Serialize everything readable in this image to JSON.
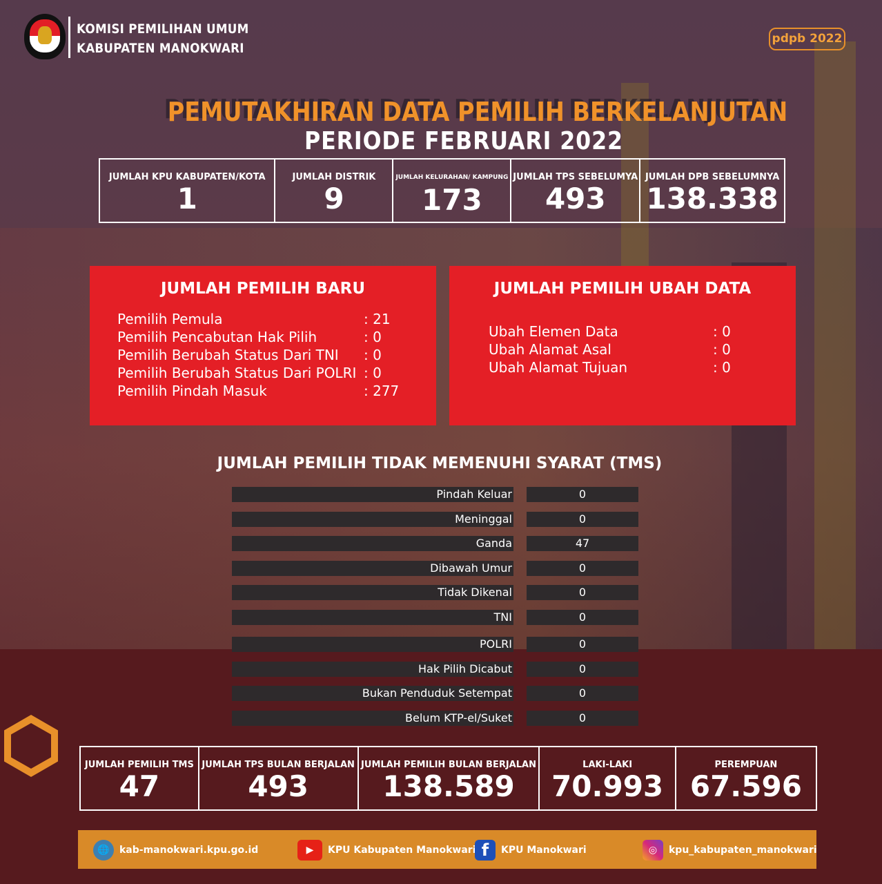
{
  "header": {
    "org_line1": "KOMISI PEMILIHAN UMUM",
    "org_line2": "KABUPATEN  MANOKWARI",
    "logo_text": "KOMISI PEMILIHAN UMUM",
    "badge": "pdpb 2022"
  },
  "title": {
    "line1": "PEMUTAKHIRAN DATA PEMILIH BERKELANJUTAN",
    "line2": "PERIODE FEBRUARI 2022"
  },
  "top_stats": [
    {
      "label": "JUMLAH KPU KABUPATEN/KOTA",
      "value": "1"
    },
    {
      "label": "JUMLAH DISTRIK",
      "value": "9"
    },
    {
      "label": "JUMLAH KELURAHAN/ KAMPUNG",
      "value": "173"
    },
    {
      "label": "JUMLAH TPS SEBELUMYA",
      "value": "493"
    },
    {
      "label": "JUMLAH DPB SEBELUMNYA",
      "value": "138.338"
    }
  ],
  "pemilih_baru": {
    "title": "JUMLAH PEMILIH BARU",
    "items": [
      {
        "label": "Pemilih Pemula",
        "value": ": 21"
      },
      {
        "label": "Pemilih Pencabutan Hak Pilih",
        "value": ": 0"
      },
      {
        "label": "Pemilih Berubah Status Dari TNI",
        "value": ": 0"
      },
      {
        "label": "Pemilih Berubah Status Dari POLRI",
        "value": ": 0"
      },
      {
        "label": "Pemilih Pindah Masuk",
        "value": ": 277"
      }
    ]
  },
  "pemilih_ubah": {
    "title": "JUMLAH PEMILIH UBAH DATA",
    "items": [
      {
        "label": "Ubah Elemen Data",
        "value": ": 0"
      },
      {
        "label": "Ubah Alamat Asal",
        "value": ": 0"
      },
      {
        "label": "Ubah Alamat Tujuan",
        "value": ": 0"
      }
    ]
  },
  "tms": {
    "title": "JUMLAH PEMILIH TIDAK MEMENUHI SYARAT (TMS)",
    "rows": [
      {
        "label": "Pindah Keluar",
        "value": "0"
      },
      {
        "label": "Meninggal",
        "value": "0"
      },
      {
        "label": "Ganda",
        "value": "47"
      },
      {
        "label": "Dibawah Umur",
        "value": "0"
      },
      {
        "label": "Tidak Dikenal",
        "value": "0"
      },
      {
        "label": "TNI",
        "value": "0"
      },
      {
        "label": "POLRI",
        "value": "0"
      },
      {
        "label": "Hak Pilih Dicabut",
        "value": "0"
      },
      {
        "label": "Bukan Penduduk Setempat",
        "value": "0"
      },
      {
        "label": "Belum KTP-el/Suket",
        "value": "0"
      }
    ]
  },
  "bottom_stats": [
    {
      "label": "JUMLAH PEMILIH TMS",
      "value": "47"
    },
    {
      "label": "JUMLAH TPS BULAN BERJALAN",
      "value": "493"
    },
    {
      "label": "JUMLAH PEMILIH BULAN BERJALAN",
      "value": "138.589"
    },
    {
      "label": "LAKI-LAKI",
      "value": "70.993"
    },
    {
      "label": "PEREMPUAN",
      "value": "67.596"
    }
  ],
  "footer": {
    "website": "kab-manokwari.kpu.go.id",
    "youtube": "KPU Kabupaten Manokwari",
    "facebook": "KPU Manokwari",
    "instagram": "kpu_kabupaten_manokwari"
  },
  "colors": {
    "accent_orange": "#f0922a",
    "box_red": "#e41f26",
    "maroon": "#561a1e",
    "footer_orange": "#d98a28"
  }
}
